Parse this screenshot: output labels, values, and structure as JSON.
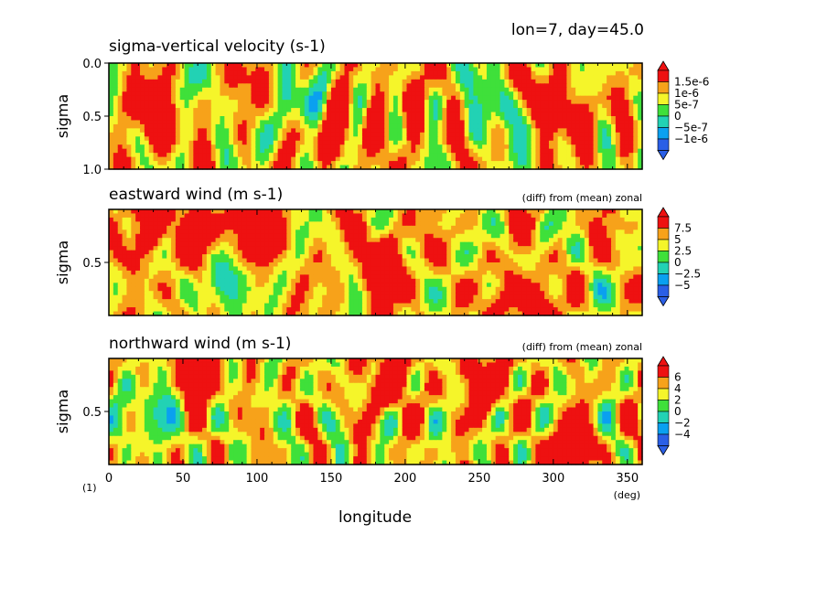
{
  "header": {
    "run_label": "lon=7, day=45.0"
  },
  "palette": [
    "#2a5fe6",
    "#0aa0f0",
    "#22d2b4",
    "#3fe03a",
    "#f5f52a",
    "#f7a21a",
    "#ee1111"
  ],
  "chart_data": [
    {
      "type": "heatmap",
      "title": "sigma-vertical velocity (s-1)",
      "note": "",
      "ylabel": "sigma",
      "yticks": [
        "0.0",
        "0.5",
        "1.0"
      ],
      "xlim": [
        0,
        360
      ],
      "ylim": [
        0,
        1
      ],
      "colorbar_levels": [
        "1.5e-6",
        "1e-6",
        "5e-7",
        "0",
        "−5e-7",
        "−1e-6"
      ],
      "field_min": -1.5,
      "field_max": 2.0,
      "field_scale": "1e-6",
      "hotspots": [
        {
          "lon": 30,
          "sigma": 0.5,
          "value": 2.0
        },
        {
          "lon": 150,
          "sigma": 0.6,
          "value": 1.8
        },
        {
          "lon": 305,
          "sigma": 0.45,
          "value": 2.0
        },
        {
          "lon": 140,
          "sigma": 0.45,
          "value": -1.5
        },
        {
          "lon": 265,
          "sigma": 0.5,
          "value": -1.2
        },
        {
          "lon": 190,
          "sigma": 0.55,
          "value": 1.2
        }
      ]
    },
    {
      "type": "heatmap",
      "title": "eastward wind (m s-1)",
      "note": "(diff) from (mean) zonal",
      "ylabel": "sigma",
      "yticks": [
        "0.5"
      ],
      "xlim": [
        0,
        360
      ],
      "ylim": [
        0,
        1
      ],
      "colorbar_levels": [
        "7.5",
        "5",
        "2.5",
        "0",
        "−2.5",
        "−5"
      ],
      "field_min": -7.0,
      "field_max": 9.0,
      "field_scale": "1",
      "hotspots": [
        {
          "lon": 185,
          "sigma": 0.5,
          "value": 9.0
        },
        {
          "lon": 100,
          "sigma": 0.2,
          "value": 8.5
        },
        {
          "lon": 60,
          "sigma": 0.2,
          "value": 8.0
        },
        {
          "lon": 280,
          "sigma": 0.9,
          "value": 8.0
        },
        {
          "lon": 80,
          "sigma": 0.7,
          "value": -7.0
        },
        {
          "lon": 20,
          "sigma": 0.15,
          "value": 6.0
        }
      ]
    },
    {
      "type": "heatmap",
      "title": "northward wind (m s-1)",
      "note": "(diff) from (mean) zonal",
      "ylabel": "sigma",
      "yticks": [
        "0.5"
      ],
      "xlim": [
        0,
        360
      ],
      "ylim": [
        0,
        1
      ],
      "xticks": [
        "0",
        "50",
        "100",
        "150",
        "200",
        "250",
        "300",
        "350"
      ],
      "colorbar_levels": [
        "6",
        "4",
        "2",
        "0",
        "−2",
        "−4"
      ],
      "field_min": -5.0,
      "field_max": 7.0,
      "field_scale": "1",
      "hotspots": [
        {
          "lon": 312,
          "sigma": 0.9,
          "value": 7.0
        },
        {
          "lon": 255,
          "sigma": 0.25,
          "value": 6.5
        },
        {
          "lon": 190,
          "sigma": 0.2,
          "value": 6.5
        },
        {
          "lon": 60,
          "sigma": 0.15,
          "value": 6.0
        },
        {
          "lon": 30,
          "sigma": 0.5,
          "value": -4.5
        }
      ],
      "xlabel": "longitude",
      "xunit": "(deg)"
    }
  ],
  "footer": {
    "figure_number": "(1)"
  }
}
